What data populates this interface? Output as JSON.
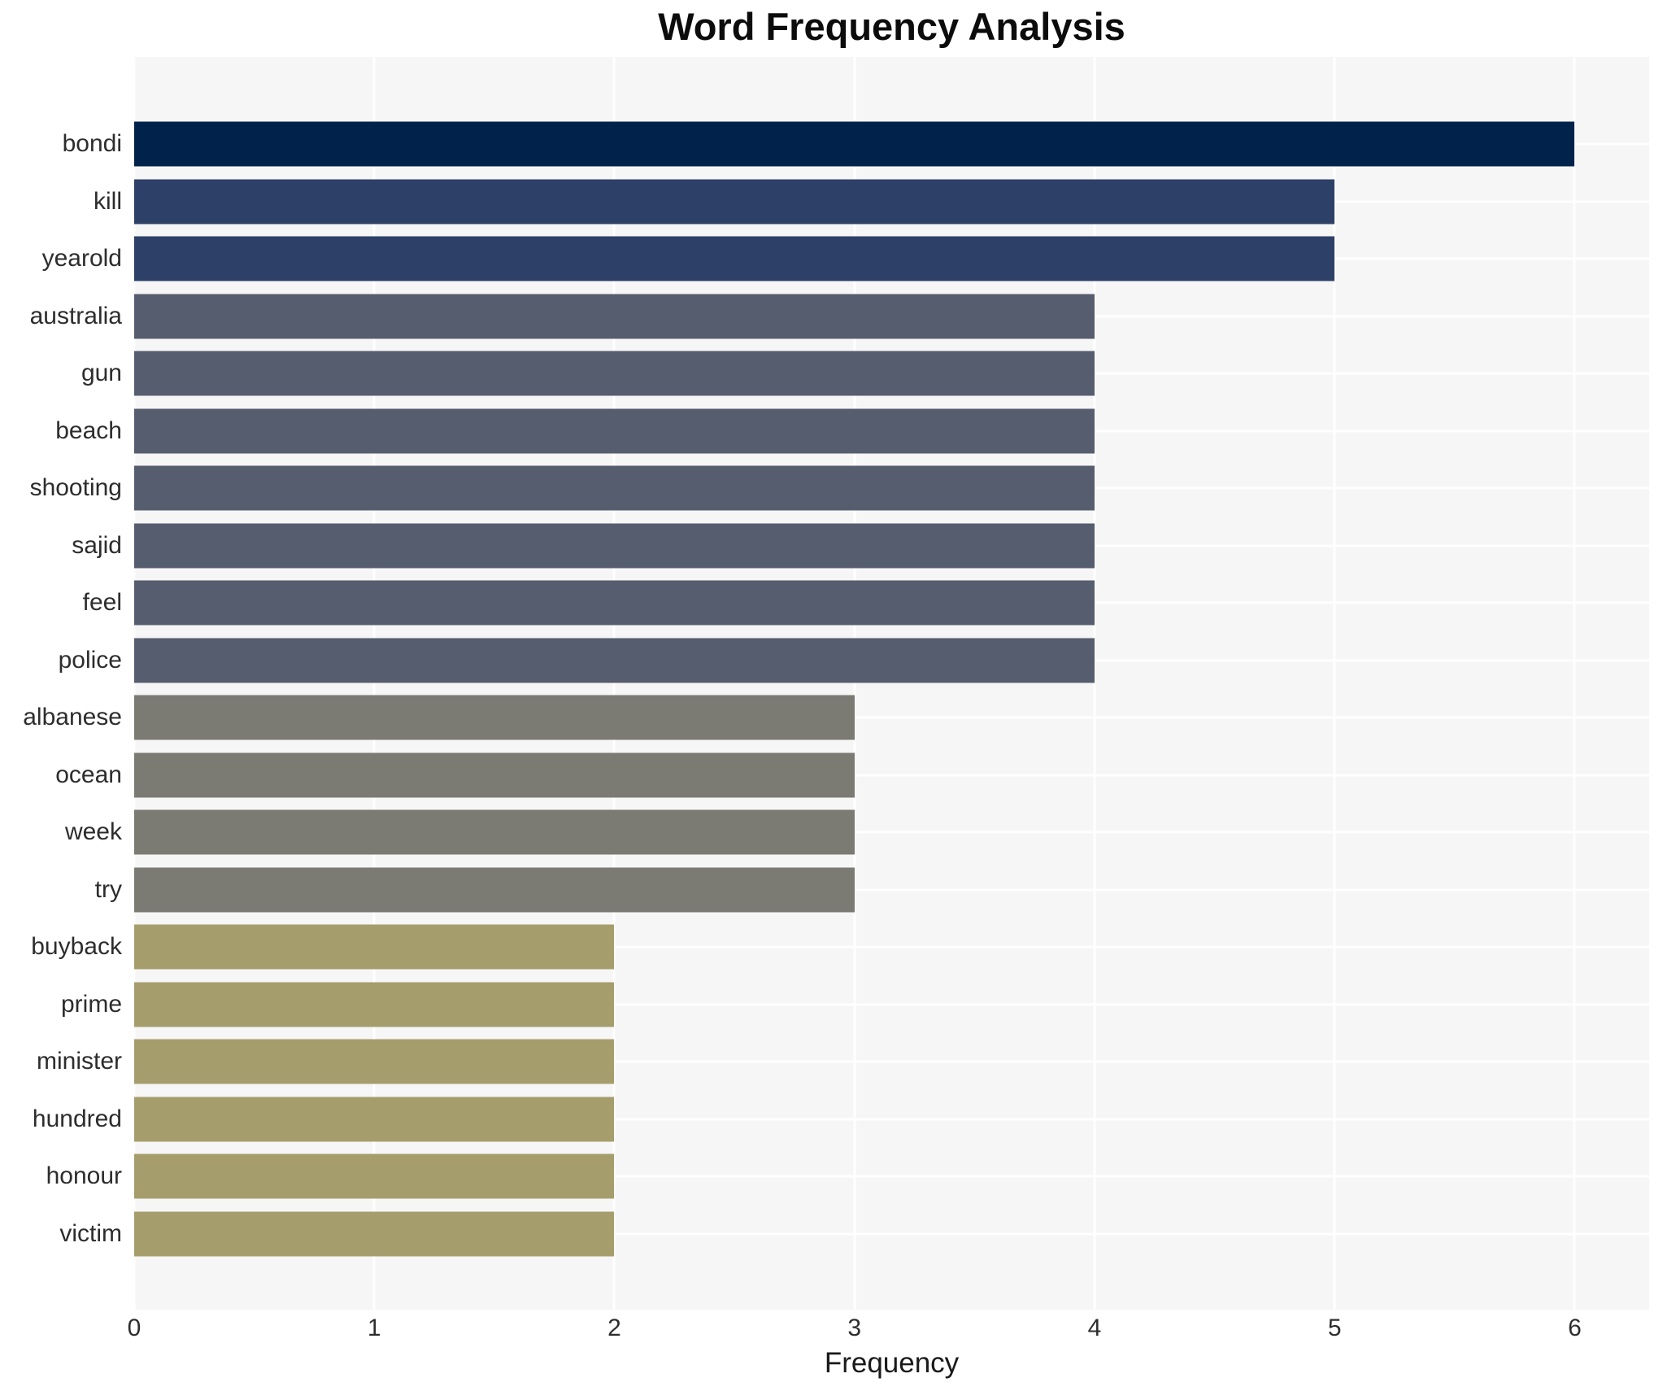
{
  "chart_data": {
    "type": "bar",
    "orientation": "horizontal",
    "title": "Word Frequency Analysis",
    "xlabel": "Frequency",
    "ylabel": "",
    "categories": [
      "bondi",
      "kill",
      "yearold",
      "australia",
      "gun",
      "beach",
      "shooting",
      "sajid",
      "feel",
      "police",
      "albanese",
      "ocean",
      "week",
      "try",
      "buyback",
      "prime",
      "minister",
      "hundred",
      "honour",
      "victim"
    ],
    "values": [
      6,
      5,
      5,
      4,
      4,
      4,
      4,
      4,
      4,
      4,
      3,
      3,
      3,
      3,
      2,
      2,
      2,
      2,
      2,
      2
    ],
    "x_ticks": [
      0,
      1,
      2,
      3,
      4,
      5,
      6
    ],
    "xlim": [
      0,
      6.31
    ],
    "grid": "major-white-on-light-gray",
    "legend": "none",
    "colors_by_value": {
      "6": "#01224a",
      "5": "#2d4067",
      "4": "#565d6e",
      "3": "#7b7a73",
      "2": "#a69d6c"
    },
    "panel_bg": "#f6f6f7",
    "gridline_color": "#ffffff",
    "title_color": "#0c0c0c",
    "tick_label_color": "#2d2d2d"
  }
}
